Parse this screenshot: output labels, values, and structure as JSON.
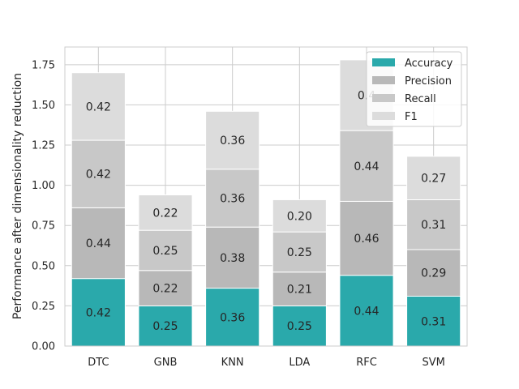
{
  "chart_data": {
    "type": "bar",
    "stacked": true,
    "title": "",
    "xlabel": "",
    "ylabel": "Performance after dimensionality reduction",
    "categories": [
      "DTC",
      "GNB",
      "KNN",
      "LDA",
      "RFC",
      "SVM"
    ],
    "ylim": [
      0,
      1.86
    ],
    "yticks": [
      "0.00",
      "0.25",
      "0.50",
      "0.75",
      "1.00",
      "1.25",
      "1.50",
      "1.75"
    ],
    "grid": true,
    "legend_position": "top-right",
    "series": [
      {
        "name": "Accuracy",
        "color": "#2aa9ab",
        "values": [
          0.42,
          0.25,
          0.36,
          0.25,
          0.44,
          0.31
        ],
        "labels": [
          "0.42",
          "0.25",
          "0.36",
          "0.25",
          "0.44",
          "0.31"
        ]
      },
      {
        "name": "Precision",
        "color": "#b8b8b8",
        "values": [
          0.44,
          0.22,
          0.38,
          0.21,
          0.46,
          0.29
        ],
        "labels": [
          "0.44",
          "0.22",
          "0.38",
          "0.21",
          "0.46",
          "0.29"
        ]
      },
      {
        "name": "Recall",
        "color": "#c8c8c8",
        "values": [
          0.42,
          0.25,
          0.36,
          0.25,
          0.44,
          0.31
        ],
        "labels": [
          "0.42",
          "0.25",
          "0.36",
          "0.25",
          "0.44",
          "0.31"
        ]
      },
      {
        "name": "F1",
        "color": "#dcdcdc",
        "values": [
          0.42,
          0.22,
          0.36,
          0.2,
          0.44,
          0.27
        ],
        "labels": [
          "0.42",
          "0.22",
          "0.36",
          "0.20",
          "0.4",
          "0.27"
        ]
      }
    ]
  }
}
